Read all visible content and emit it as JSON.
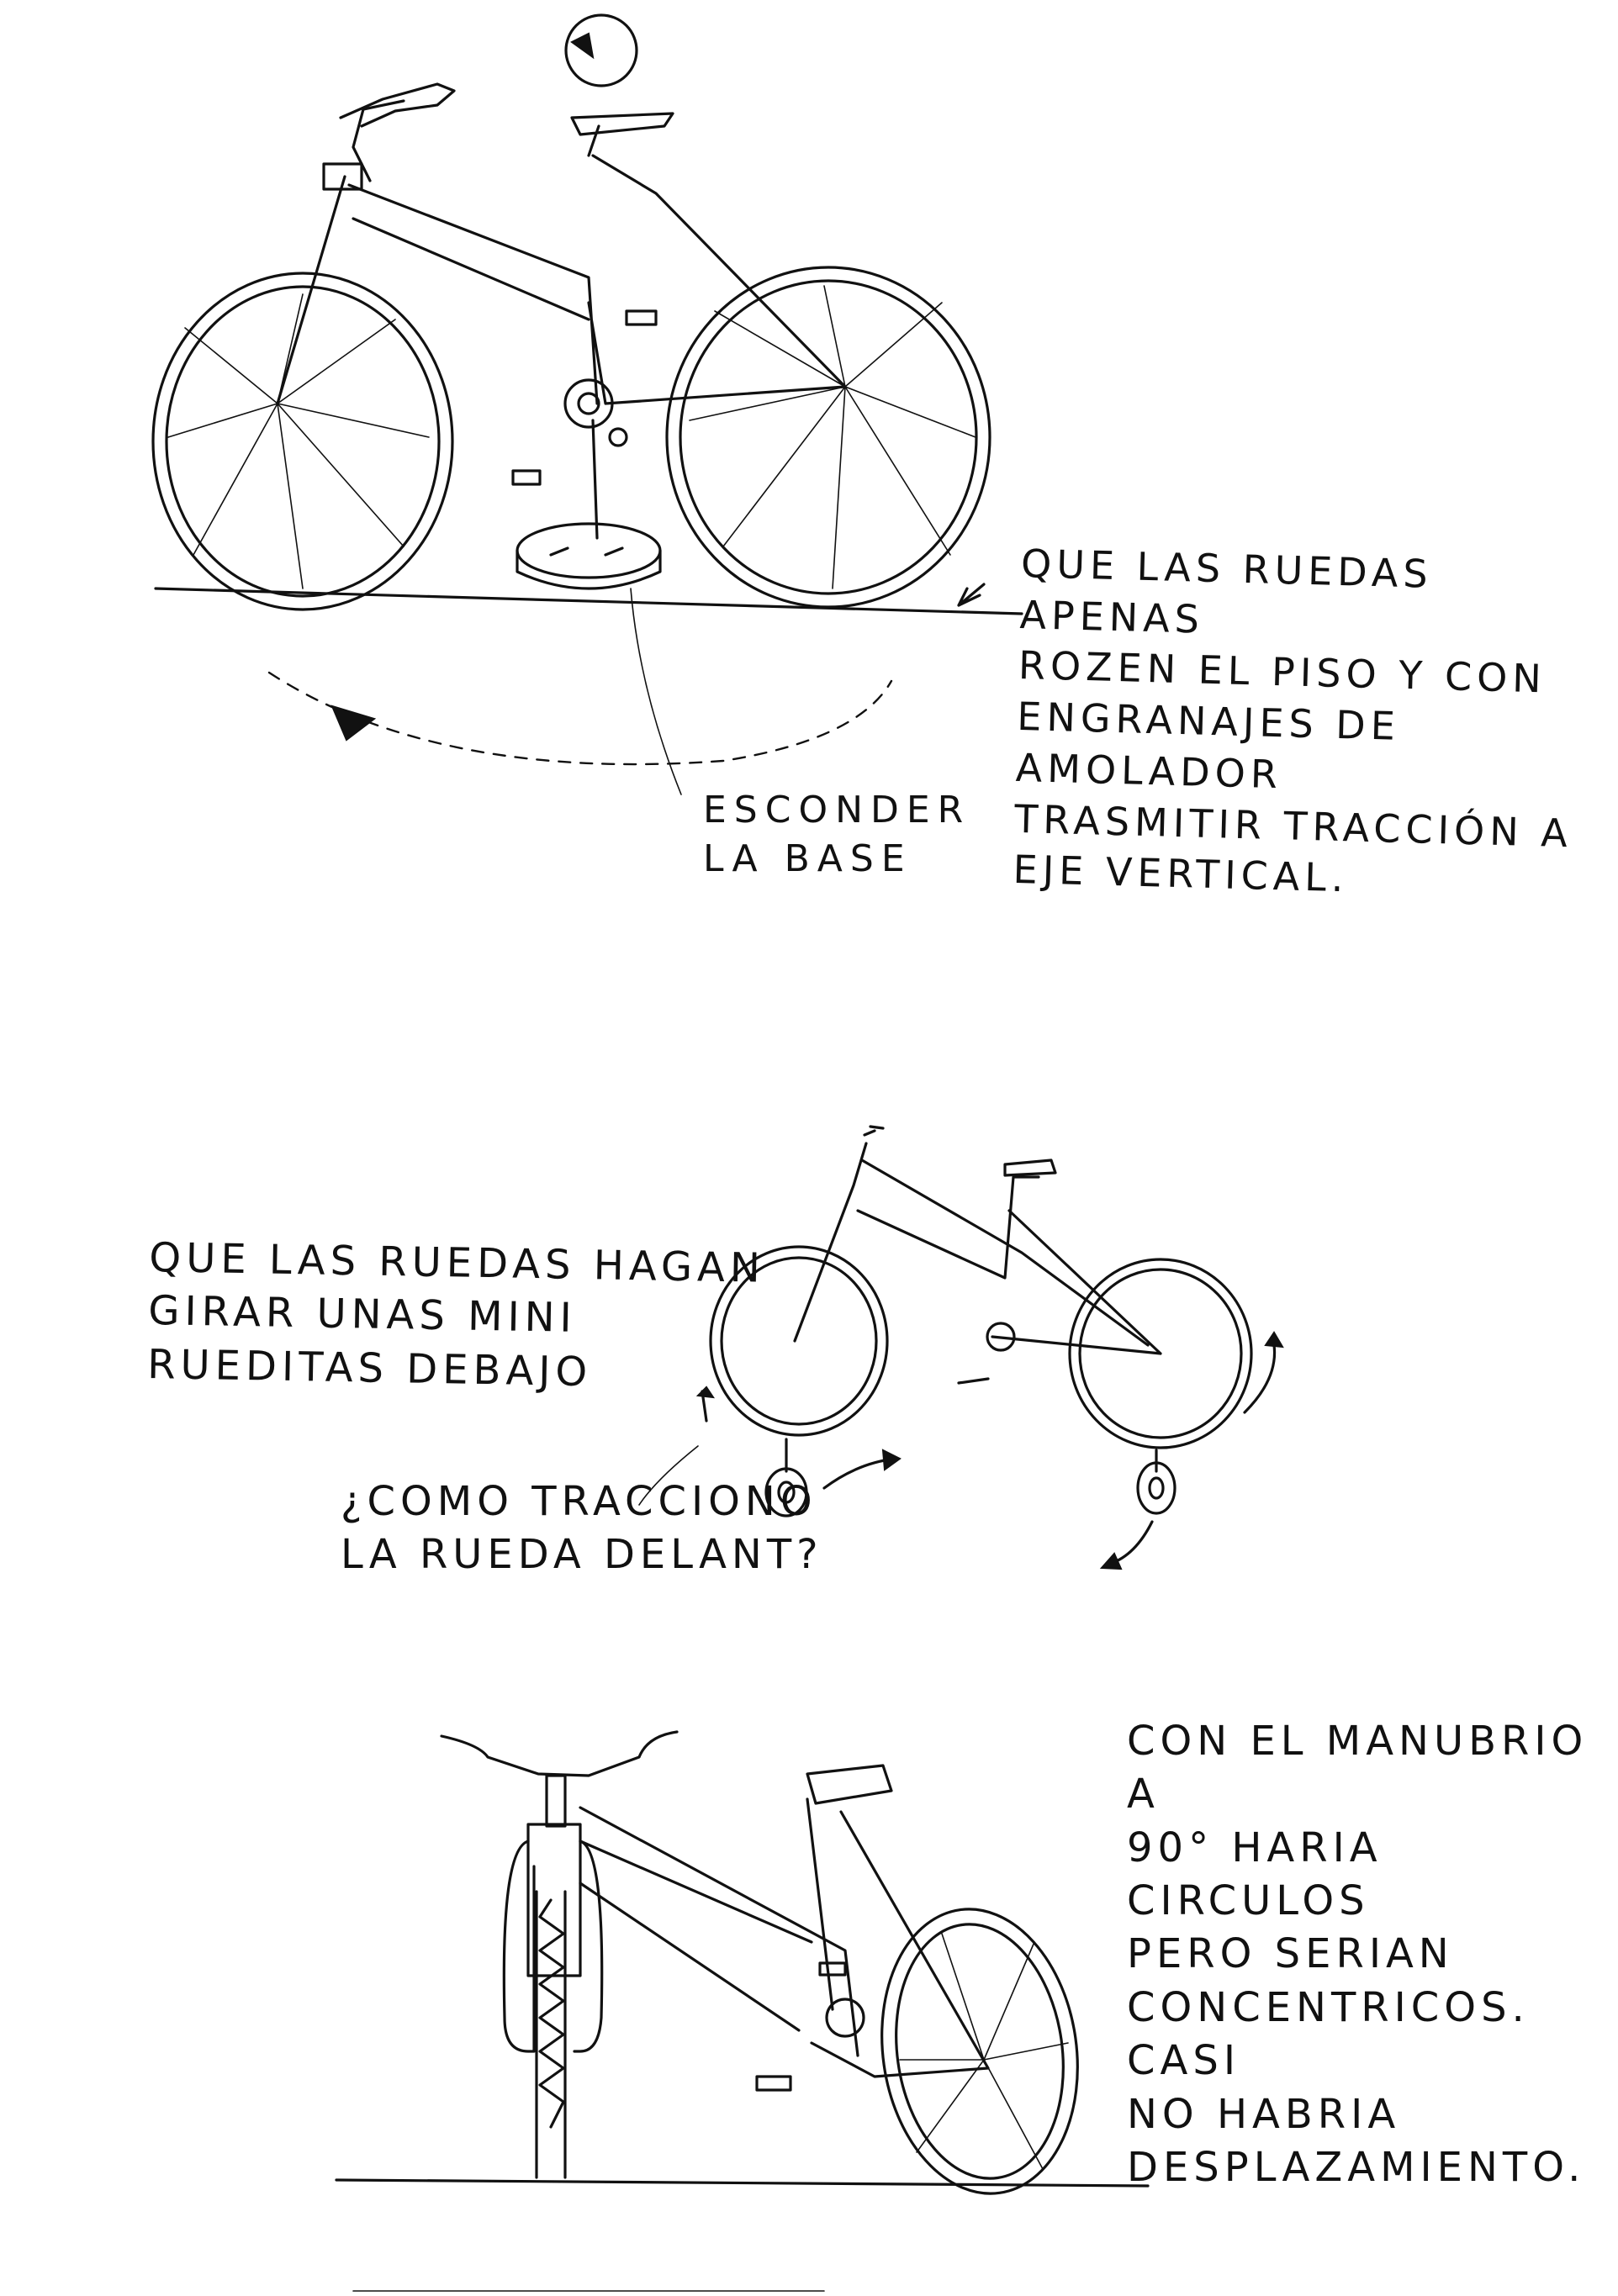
{
  "notes": {
    "top_right": "Que las ruedas apenas\nrozen el piso y con\nengranajes de amolador\ntrasmitir tracción a\neje vertical.",
    "hide_base": "Esconder\nla base",
    "mini_wheels": "Que las ruedas hagan\ngirar unas mini\nrueditas debajo",
    "front_wheel_question": "¿Como tracciono\nla rueda delant?",
    "handlebar_note": "Con el manubrio a\n90° haria circulos\npero serian\nconcentricos. Casi\nno habria\ndesplazamiento."
  },
  "ink_color": "#111111",
  "paper_color": "#ffffff"
}
